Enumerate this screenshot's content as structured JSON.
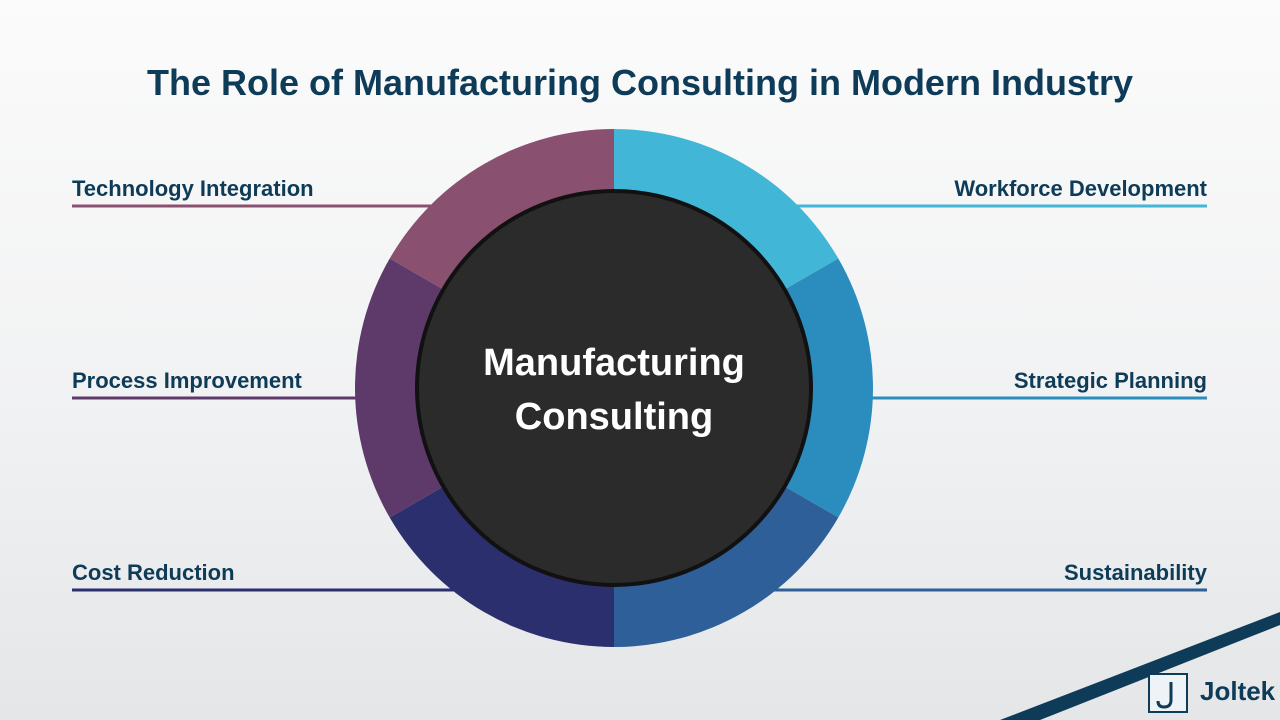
{
  "header": {
    "title": "The Role of Manufacturing Consulting in Modern Industry"
  },
  "center": {
    "label": "Manufacturing Consulting"
  },
  "left_items": [
    {
      "label": "Technology Integration",
      "color": "#8a5070"
    },
    {
      "label": "Process Improvement",
      "color": "#5e3a6b"
    },
    {
      "label": "Cost Reduction",
      "color": "#2c2f6e"
    }
  ],
  "right_items": [
    {
      "label": "Workforce Development",
      "color": "#42b6d6"
    },
    {
      "label": "Strategic Planning",
      "color": "#2a8dbe"
    },
    {
      "label": "Sustainability",
      "color": "#2e5f98"
    }
  ],
  "logo": {
    "text": "Joltek"
  }
}
